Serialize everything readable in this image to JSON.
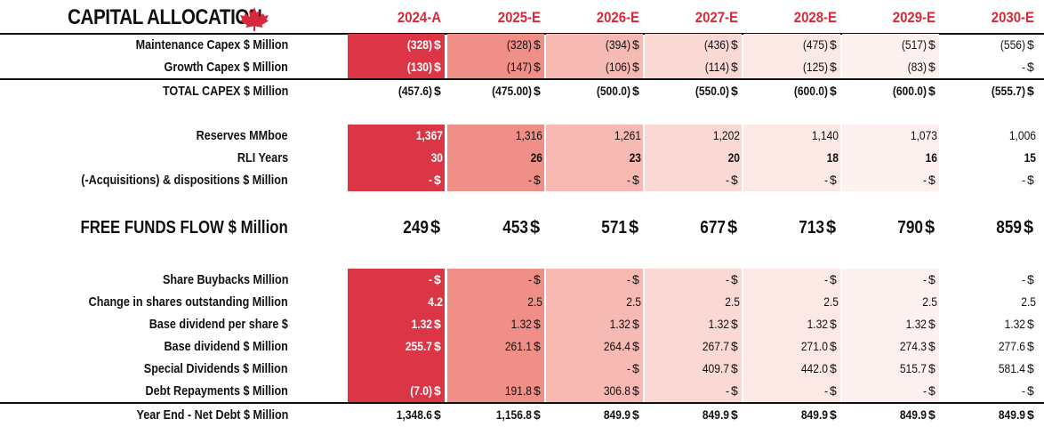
{
  "title": "CAPITAL ALLOCATION",
  "columns": [
    "2024-A",
    "2025-E",
    "2026-E",
    "2027-E",
    "2028-E",
    "2029-E",
    "2030-E"
  ],
  "colors": {
    "header_red": "#d7283c",
    "col_fills": [
      "#dc3545",
      "#f08f87",
      "#f6b9b3",
      "#fad8d4",
      "#fce9e6",
      "#fdf1ef",
      "#ffffff"
    ]
  },
  "rows": [
    {
      "label": "Maintenance Capex $ Million",
      "values": [
        "(328)",
        "(328)",
        "(394)",
        "(436)",
        "(475)",
        "(517)",
        "(556)"
      ],
      "currency": [
        "$",
        "$",
        "$",
        "$",
        "$",
        "$",
        "$"
      ],
      "shaded": true,
      "bold": false
    },
    {
      "label": "Growth Capex $ Million",
      "values": [
        "(130)",
        "(147)",
        "(106)",
        "(114)",
        "(125)",
        "(83)",
        "-"
      ],
      "currency": [
        "$",
        "$",
        "$",
        "$",
        "$",
        "$",
        "$"
      ],
      "shaded": true,
      "bold": false
    },
    {
      "label": "TOTAL CAPEX $ Million",
      "values": [
        "(457.6)",
        "(475.00)",
        "(500.0)",
        "(550.0)",
        "(600.0)",
        "(600.0)",
        "(555.7)"
      ],
      "currency": [
        "$",
        "$",
        "$",
        "$",
        "$",
        "$",
        "$"
      ],
      "shaded": false,
      "bold": true
    },
    {
      "label": "Reserves MMboe",
      "values": [
        "1,367",
        "1,316",
        "1,261",
        "1,202",
        "1,140",
        "1,073",
        "1,006"
      ],
      "currency": [
        "",
        "",
        "",
        "",
        "",
        "",
        ""
      ],
      "shaded": true,
      "bold": false
    },
    {
      "label": "RLI Years",
      "values": [
        "30",
        "26",
        "23",
        "20",
        "18",
        "16",
        "15"
      ],
      "currency": [
        "",
        "",
        "",
        "",
        "",
        "",
        ""
      ],
      "shaded": true,
      "bold": true
    },
    {
      "label": "(-Acquisitions) & dispositions $ Million",
      "values": [
        "-",
        "-",
        "-",
        "-",
        "-",
        "-",
        "-"
      ],
      "currency": [
        "$",
        "$",
        "$",
        "$",
        "$",
        "$",
        "$"
      ],
      "shaded": true,
      "bold": false
    },
    {
      "label": "FREE FUNDS FLOW $ Million",
      "values": [
        "249",
        "453",
        "571",
        "677",
        "713",
        "790",
        "859"
      ],
      "currency": [
        "$",
        "$",
        "$",
        "$",
        "$",
        "$",
        "$"
      ],
      "shaded": false,
      "bold": true,
      "big": true
    },
    {
      "label": "Share Buybacks Million",
      "values": [
        "-",
        "-",
        "-",
        "-",
        "-",
        "-",
        "-"
      ],
      "currency": [
        "$",
        "$",
        "$",
        "$",
        "$",
        "$",
        "$"
      ],
      "shaded": true,
      "bold": false
    },
    {
      "label": "Change in shares outstanding Million",
      "values": [
        "4.2",
        "2.5",
        "2.5",
        "2.5",
        "2.5",
        "2.5",
        "2.5"
      ],
      "currency": [
        "",
        "",
        "",
        "",
        "",
        "",
        ""
      ],
      "shaded": true,
      "bold": false
    },
    {
      "label": "Base dividend per share $",
      "values": [
        "1.32",
        "1.32",
        "1.32",
        "1.32",
        "1.32",
        "1.32",
        "1.32"
      ],
      "currency": [
        "$",
        "$",
        "$",
        "$",
        "$",
        "$",
        "$"
      ],
      "shaded": true,
      "bold": false
    },
    {
      "label": "Base dividend $ Million",
      "values": [
        "255.7",
        "261.1",
        "264.4",
        "267.7",
        "271.0",
        "274.3",
        "277.6"
      ],
      "currency": [
        "$",
        "$",
        "$",
        "$",
        "$",
        "$",
        "$"
      ],
      "shaded": true,
      "bold": false
    },
    {
      "label": "Special Dividends $ Million",
      "values": [
        "",
        "",
        "-",
        "409.7",
        "442.0",
        "515.7",
        "581.4"
      ],
      "currency": [
        "",
        "",
        "$",
        "$",
        "$",
        "$",
        "$"
      ],
      "shaded": true,
      "bold": false
    },
    {
      "label": "Debt Repayments $ Million",
      "values": [
        "(7.0)",
        "191.8",
        "306.8",
        "-",
        "-",
        "-",
        "-"
      ],
      "currency": [
        "$",
        "$",
        "$",
        "$",
        "$",
        "$",
        "$"
      ],
      "shaded": true,
      "bold": false
    },
    {
      "label": "Year End - Net Debt $ Million",
      "values": [
        "1,348.6",
        "1,156.8",
        "849.9",
        "849.9",
        "849.9",
        "849.9",
        "849.9"
      ],
      "currency": [
        "$",
        "$",
        "$",
        "$",
        "$",
        "$",
        "$"
      ],
      "shaded": false,
      "bold": true
    }
  ]
}
